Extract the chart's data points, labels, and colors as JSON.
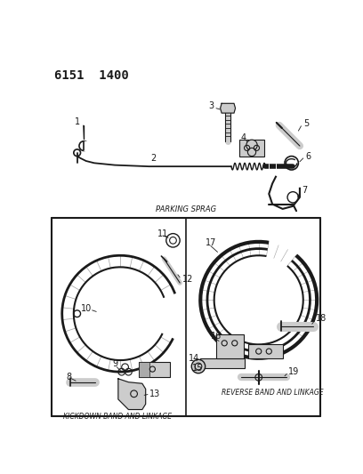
{
  "title_code": "6151  1400",
  "bg_color": "#ffffff",
  "line_color": "#1a1a1a",
  "gray_color": "#888888",
  "light_gray": "#cccccc",
  "section1_label": "PARKING SPRAG",
  "section2_label": "KICKDOWN BAND AND LINKAGE",
  "section3_label": "REVERSE BAND AND LINKAGE",
  "figsize": [
    4.08,
    5.33
  ],
  "dpi": 100
}
